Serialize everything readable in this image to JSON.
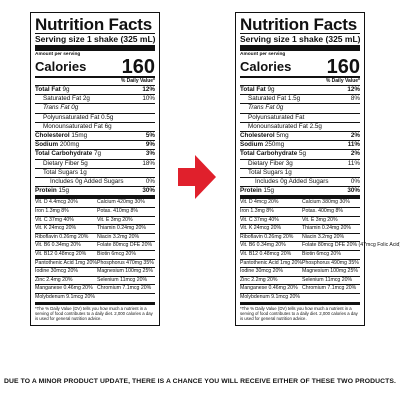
{
  "labels": [
    {
      "title": "Nutrition Facts",
      "serving": "Serving size  1 shake (325 mL)",
      "amount_per_serving": "Amount per serving",
      "calories_label": "Calories",
      "calories_value": "160",
      "dv_header": "% Daily Value*",
      "rows": [
        {
          "label": "Total Fat",
          "amount": "9g",
          "dv": "12%",
          "style": "bold"
        },
        {
          "label": "Saturated Fat",
          "amount": "2g",
          "dv": "10%",
          "style": "ind1"
        },
        {
          "label": "Trans Fat",
          "amount": "0g",
          "dv": "",
          "style": "ind1 it"
        },
        {
          "label": "Polyunsaturated Fat",
          "amount": "0.5g",
          "dv": "",
          "style": "ind1"
        },
        {
          "label": "Monounsaturated Fat",
          "amount": "6g",
          "dv": "",
          "style": "ind1"
        },
        {
          "label": "Cholesterol",
          "amount": "15mg",
          "dv": "5%",
          "style": "bold"
        },
        {
          "label": "Sodium",
          "amount": "200mg",
          "dv": "9%",
          "style": "bold"
        },
        {
          "label": "Total Carbohydrate",
          "amount": "7g",
          "dv": "3%",
          "style": "bold"
        },
        {
          "label": "Dietary Fiber",
          "amount": "5g",
          "dv": "18%",
          "style": "ind1"
        },
        {
          "label": "Total Sugars",
          "amount": "1g",
          "dv": "",
          "style": "ind1"
        },
        {
          "label": "Includes 0g Added Sugars",
          "amount": "",
          "dv": "0%",
          "style": "ind2"
        },
        {
          "label": "Protein",
          "amount": "15g",
          "dv": "30%",
          "style": "bold thickrow"
        }
      ],
      "vitamins": [
        [
          "Vit. D 4.4mcg 20%",
          "Calcium 420mg 30%"
        ],
        [
          "Iron 1.3mg 8%",
          "Potas. 410mg 8%"
        ],
        [
          "Vit. C 37mg 40%",
          "Vit. E 3mg 20%"
        ],
        [
          "Vit. K 24mcg 20%",
          "Thiamin 0.24mg 20%"
        ],
        [
          "Riboflavin 0.26mg 20%",
          "Niacin 3.2mg 20%"
        ],
        [
          "Vit. B6 0.34mg 20%",
          "Folate 80mcg DFE 20%"
        ],
        [
          "Vit. B12 0.48mcg 20%",
          "Biotin 6mcg 20%"
        ],
        [
          "Pantothenic Acid 1mg 20%",
          "Phosphorus 470mg 35%"
        ],
        [
          "Iodine 30mcg 20%",
          "Magnesium 100mg 25%"
        ],
        [
          "Zinc 2.4mg 20%",
          "Selenium 11mcg 20%"
        ],
        [
          "Manganese 0.46mg 20%",
          "Chromium 7.1mcg 20%"
        ],
        [
          "Molybdenum 9.1mcg 20%",
          ""
        ]
      ],
      "footnote": "*The % Daily Value (DV) tells you how much a nutrient in a serving of food contributes to a daily diet. 2,000 calories a day is used for general nutrition advice."
    },
    {
      "title": "Nutrition Facts",
      "serving": "Serving size  1 shake (325 mL)",
      "amount_per_serving": "Amount per serving",
      "calories_label": "Calories",
      "calories_value": "160",
      "dv_header": "% Daily Value*",
      "rows": [
        {
          "label": "Total Fat",
          "amount": "9g",
          "dv": "12%",
          "style": "bold"
        },
        {
          "label": "Saturated Fat",
          "amount": "1.5g",
          "dv": "8%",
          "style": "ind1"
        },
        {
          "label": "Trans Fat",
          "amount": "0g",
          "dv": "",
          "style": "ind1 it"
        },
        {
          "label": "Polyunsaturated Fat",
          "amount": "",
          "dv": "",
          "style": "ind1"
        },
        {
          "label": "Monounsaturated Fat",
          "amount": "2.5g",
          "dv": "",
          "style": "ind1"
        },
        {
          "label": "Cholesterol",
          "amount": "5mg",
          "dv": "2%",
          "style": "bold"
        },
        {
          "label": "Sodium",
          "amount": "250mg",
          "dv": "11%",
          "style": "bold"
        },
        {
          "label": "Total Carbohydrate",
          "amount": "5g",
          "dv": "2%",
          "style": "bold"
        },
        {
          "label": "Dietary Fiber",
          "amount": "3g",
          "dv": "11%",
          "style": "ind1"
        },
        {
          "label": "Total Sugars",
          "amount": "1g",
          "dv": "",
          "style": "ind1"
        },
        {
          "label": "Includes 0g Added Sugars",
          "amount": "",
          "dv": "0%",
          "style": "ind2"
        },
        {
          "label": "Protein",
          "amount": "15g",
          "dv": "30%",
          "style": "bold thickrow"
        }
      ],
      "vitamins": [
        [
          "Vit. D 4mcg 20%",
          "Calcium 380mg 30%"
        ],
        [
          "Iron 1.3mg 8%",
          "Potas. 400mg 8%"
        ],
        [
          "Vit. C 37mg 40%",
          "Vit. E 3mg 20%"
        ],
        [
          "Vit. K 24mcg 20%",
          "Thiamin 0.24mg 20%"
        ],
        [
          "Riboflavin 0.26mg 20%",
          "Niacin 3.2mg 20%"
        ],
        [
          "Vit. B6 0.34mg 20%",
          "Folate 80mcg DFE 20% (47mcg Folic Acid)"
        ],
        [
          "Vit. B12 0.48mcg 20%",
          "Biotin 6mcg 20%"
        ],
        [
          "Pantothenic Acid 1mg 20%",
          "Phosphorus 490mg 35%"
        ],
        [
          "Iodine 30mcg 20%",
          "Magnesium 100mg 25%"
        ],
        [
          "Zinc 2.2mg 20%",
          "Selenium 11mcg 20%"
        ],
        [
          "Manganese 0.46mg 20%",
          "Chromium 7.1mcg 20%"
        ],
        [
          "Molybdenum 9.1mcg 20%",
          ""
        ]
      ],
      "footnote": "*The % Daily Value (DV) tells you how much a nutrient in a serving of food contributes to a daily diet. 2,000 calories a day is used for general nutrition advice."
    }
  ],
  "arrow_color": "#e0202c",
  "bottom_note": "DUE TO A MINOR PRODUCT UPDATE, THERE IS A CHANCE YOU WILL RECEIVE EITHER OF THESE TWO PRODUCTS."
}
